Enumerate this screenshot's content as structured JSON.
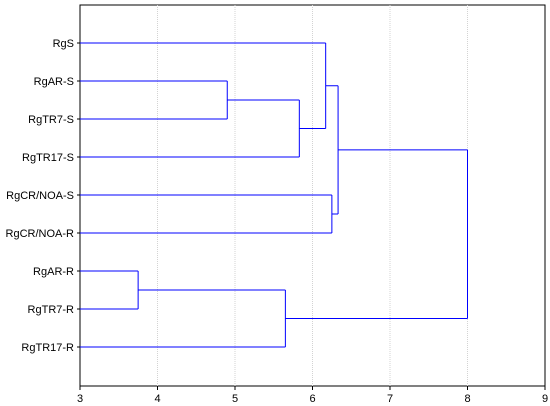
{
  "chart_data": {
    "type": "dendrogram",
    "orientation": "horizontal",
    "title": "",
    "xlabel": "",
    "ylabel": "",
    "xlim": [
      3,
      9
    ],
    "x_ticks": [
      3,
      4,
      5,
      6,
      7,
      8,
      9
    ],
    "grid": "vertical",
    "line_color": "#0000ff",
    "leaves": [
      "RgS",
      "RgAR-S",
      "RgTR7-S",
      "RgTR17-S",
      "RgCR/NOA-S",
      "RgCR/NOA-R",
      "RgAR-R",
      "RgTR7-R",
      "RgTR17-R"
    ],
    "merges": [
      {
        "id": "c1",
        "children": [
          "RgAR-S",
          "RgTR7-S"
        ],
        "height": 4.9
      },
      {
        "id": "c2",
        "children": [
          "c1",
          "RgTR17-S"
        ],
        "height": 5.83
      },
      {
        "id": "c3",
        "children": [
          "RgS",
          "c2"
        ],
        "height": 6.17
      },
      {
        "id": "c4",
        "children": [
          "RgCR/NOA-S",
          "RgCR/NOA-R"
        ],
        "height": 6.25
      },
      {
        "id": "c5",
        "children": [
          "c3",
          "c4"
        ],
        "height": 6.33
      },
      {
        "id": "c6",
        "children": [
          "RgAR-R",
          "RgTR7-R"
        ],
        "height": 3.75
      },
      {
        "id": "c7",
        "children": [
          "c6",
          "RgTR17-R"
        ],
        "height": 5.65
      },
      {
        "id": "c8",
        "children": [
          "c5",
          "c7"
        ],
        "height": 8.0
      }
    ]
  }
}
